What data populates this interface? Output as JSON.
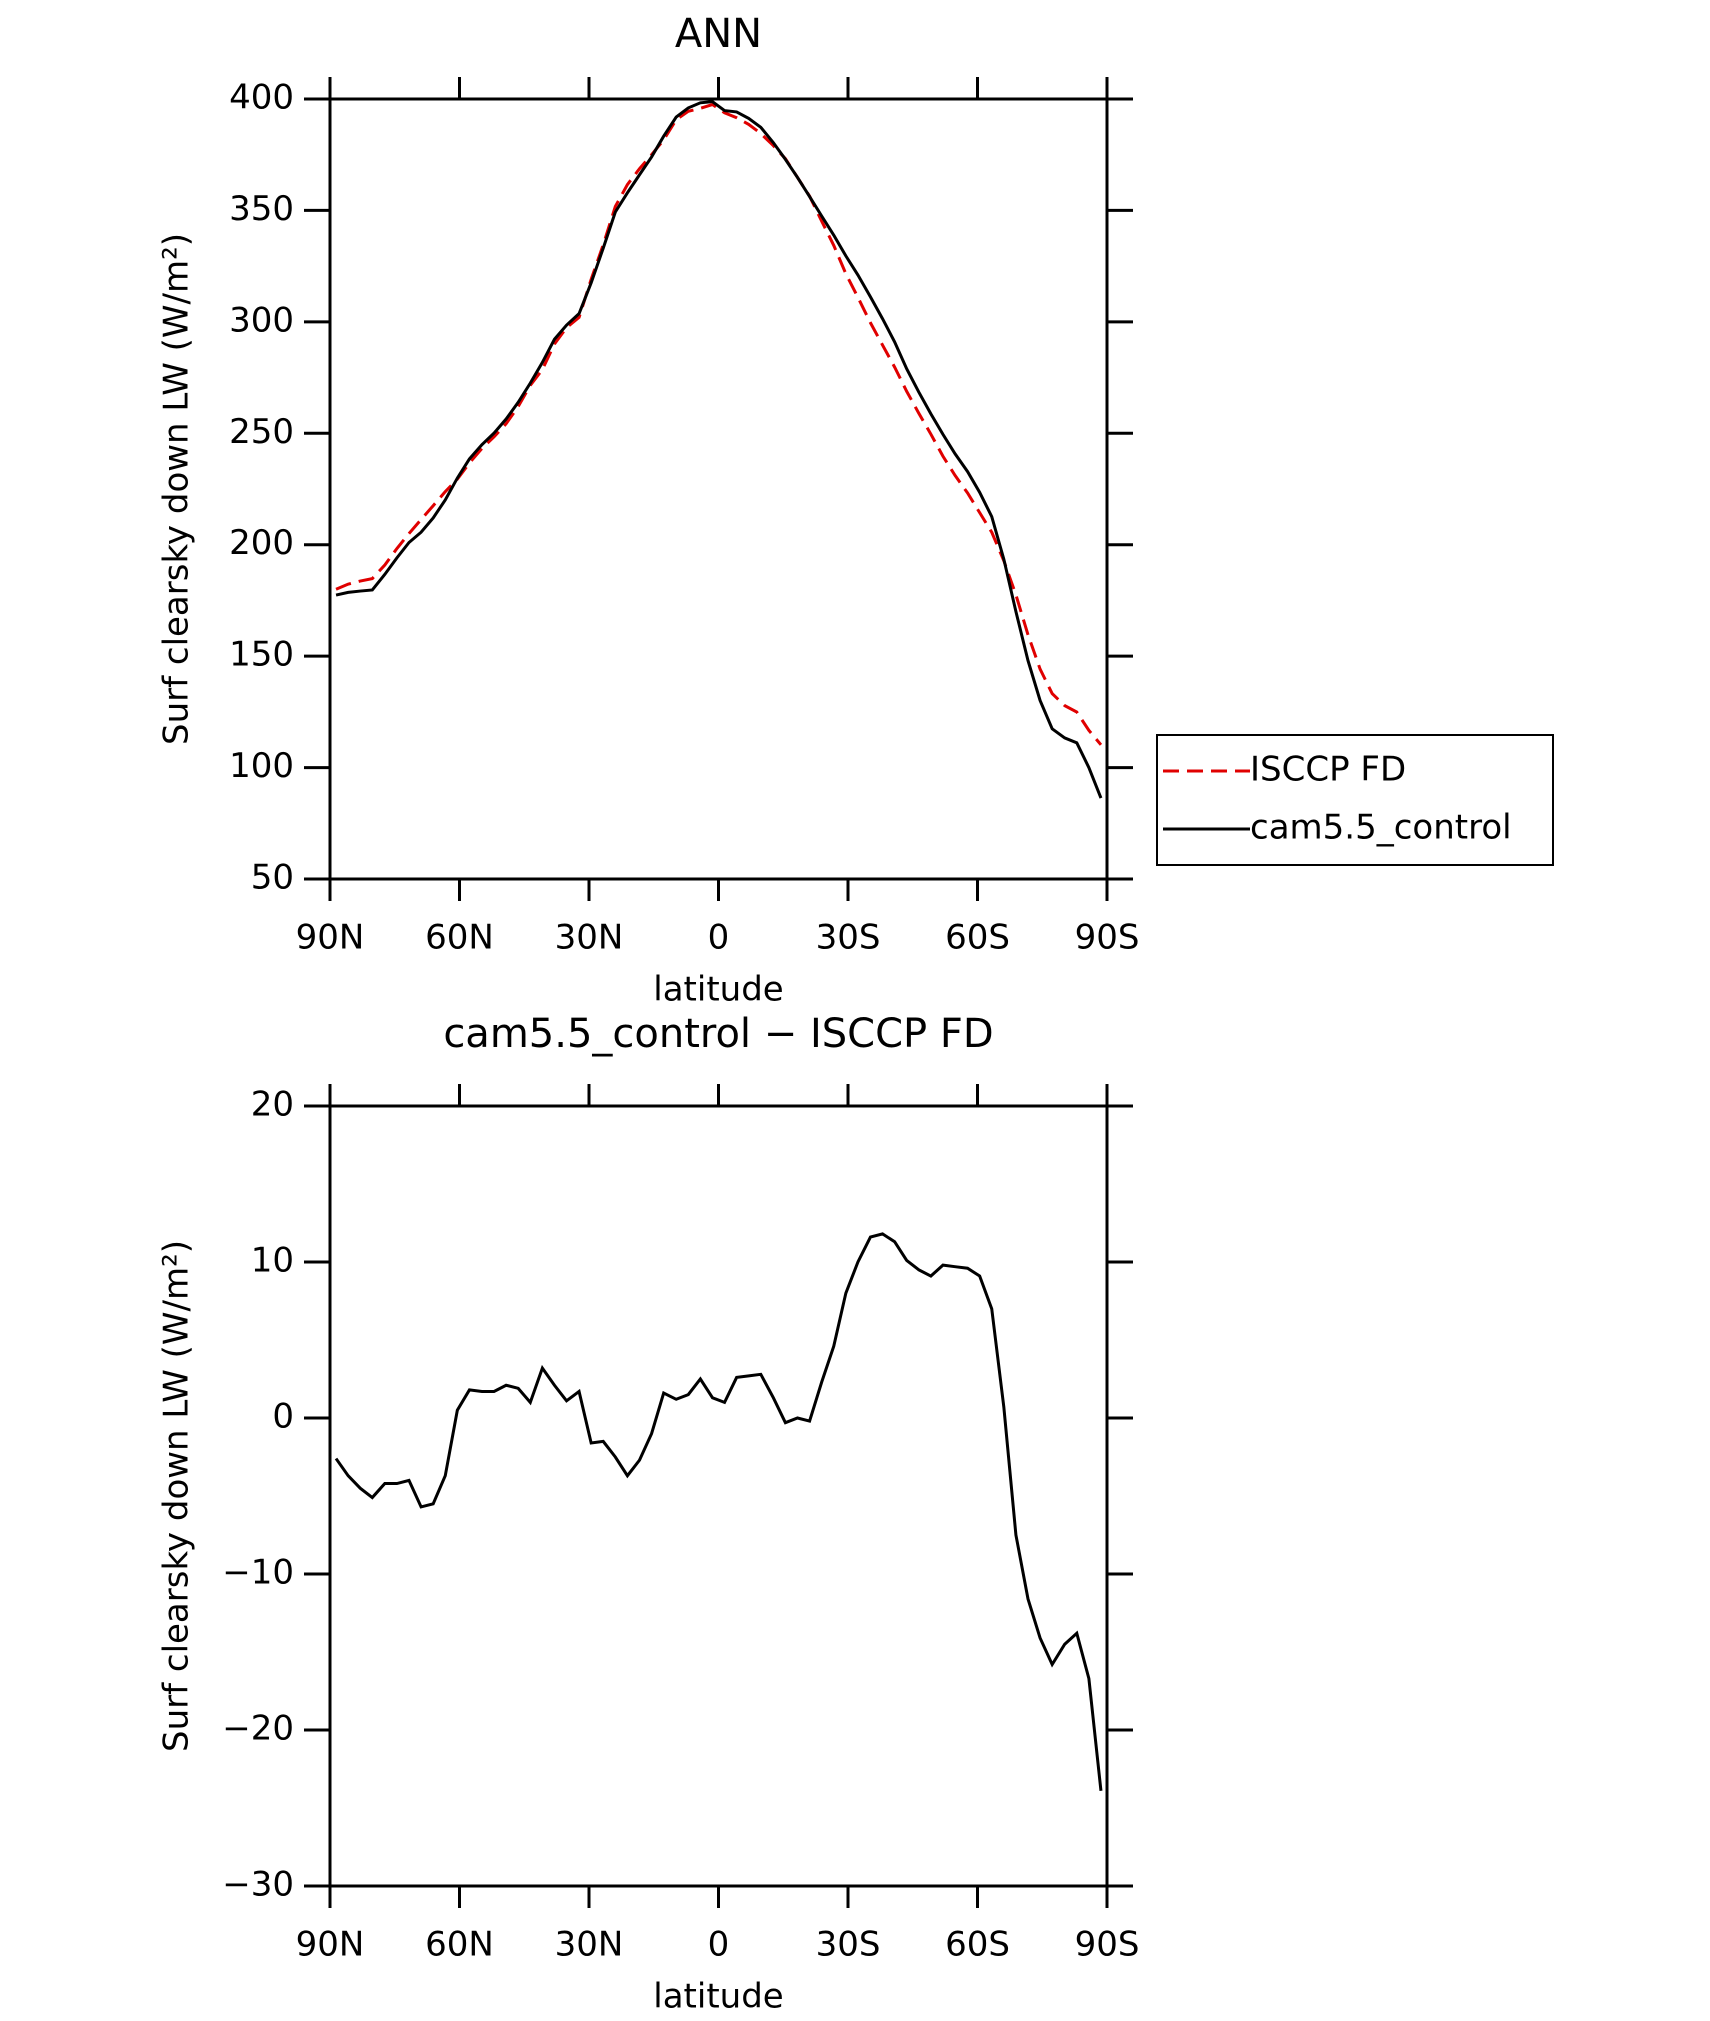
{
  "chart_data": [
    {
      "type": "line",
      "title": "ANN",
      "x_label": "latitude",
      "y_label": "Surf clearsky down LW (W/m²)",
      "x": [
        88.6,
        85.8,
        83.0,
        80.2,
        77.3,
        74.5,
        71.7,
        68.9,
        66.1,
        63.3,
        60.5,
        57.7,
        54.8,
        52.0,
        49.2,
        46.4,
        43.6,
        40.8,
        38.0,
        35.2,
        32.3,
        29.5,
        26.7,
        23.9,
        21.1,
        18.3,
        15.5,
        12.7,
        9.8,
        7.0,
        4.2,
        1.4,
        -1.4,
        -4.2,
        -7.0,
        -9.8,
        -12.7,
        -15.5,
        -18.3,
        -21.1,
        -23.9,
        -26.7,
        -29.5,
        -32.3,
        -35.2,
        -38.0,
        -40.8,
        -43.6,
        -46.4,
        -49.2,
        -52.0,
        -54.8,
        -57.7,
        -60.5,
        -63.3,
        -66.1,
        -68.9,
        -71.7,
        -74.5,
        -77.3,
        -80.2,
        -83.0,
        -85.8,
        -88.6
      ],
      "series": [
        {
          "name": "ISCCP FD",
          "color": "#e00000",
          "dash": true,
          "values": [
            180.0,
            182.3,
            183.7,
            184.8,
            190.9,
            198.3,
            205.0,
            211.3,
            217.5,
            223.8,
            229.4,
            236.7,
            243.2,
            248.4,
            254.3,
            262.0,
            271.5,
            278.6,
            290.1,
            297.4,
            302.0,
            319.1,
            334.6,
            351.8,
            361.6,
            368.7,
            375.0,
            381.7,
            390.7,
            394.5,
            395.8,
            397.5,
            393.8,
            391.6,
            388.6,
            384.5,
            379.1,
            373.2,
            364.8,
            356.4,
            345.2,
            334.3,
            321.6,
            311.0,
            299.6,
            289.6,
            279.7,
            268.8,
            259.0,
            249.6,
            239.7,
            231.1,
            223.2,
            214.4,
            205.6,
            192.8,
            177.5,
            159.6,
            144.2,
            133.2,
            127.8,
            124.9,
            116.7,
            110.2
          ]
        },
        {
          "name": "cam5.5_control",
          "color": "#000000",
          "dash": false,
          "values": [
            177.4,
            178.6,
            179.2,
            179.7,
            186.7,
            194.1,
            201.0,
            205.6,
            212.0,
            220.1,
            229.9,
            238.5,
            244.9,
            250.1,
            256.4,
            263.9,
            272.5,
            281.8,
            292.2,
            298.5,
            303.7,
            317.5,
            333.1,
            349.3,
            357.9,
            366.0,
            374.0,
            383.3,
            391.9,
            396.0,
            398.3,
            398.8,
            394.8,
            394.2,
            391.3,
            387.3,
            380.4,
            372.9,
            364.8,
            356.2,
            347.5,
            338.9,
            329.6,
            321.0,
            311.2,
            301.4,
            291.0,
            278.9,
            268.5,
            258.7,
            249.5,
            240.8,
            232.8,
            223.5,
            212.6,
            193.5,
            170.0,
            148.0,
            130.1,
            117.4,
            113.3,
            111.1,
            100.0,
            86.3
          ]
        }
      ],
      "xlim": [
        90,
        -90
      ],
      "xticks": [
        {
          "value": 90,
          "label": "90N"
        },
        {
          "value": 60,
          "label": "60N"
        },
        {
          "value": 30,
          "label": "30N"
        },
        0,
        {
          "value": -30,
          "label": "30S"
        },
        {
          "value": -60,
          "label": "60S"
        },
        {
          "value": -90,
          "label": "90S"
        }
      ],
      "ylim": [
        50,
        400
      ],
      "yticks": [
        50,
        100,
        150,
        200,
        250,
        300,
        350,
        400
      ],
      "legend": "right"
    },
    {
      "type": "line",
      "title": "cam5.5_control − ISCCP FD",
      "x_label": "latitude",
      "y_label": "Surf clearsky down LW (W/m²)",
      "x": [
        88.6,
        85.8,
        83.0,
        80.2,
        77.3,
        74.5,
        71.7,
        68.9,
        66.1,
        63.3,
        60.5,
        57.7,
        54.8,
        52.0,
        49.2,
        46.4,
        43.6,
        40.8,
        38.0,
        35.2,
        32.3,
        29.5,
        26.7,
        23.9,
        21.1,
        18.3,
        15.5,
        12.7,
        9.8,
        7.0,
        4.2,
        1.4,
        -1.4,
        -4.2,
        -7.0,
        -9.8,
        -12.7,
        -15.5,
        -18.3,
        -21.1,
        -23.9,
        -26.7,
        -29.5,
        -32.3,
        -35.2,
        -38.0,
        -40.8,
        -43.6,
        -46.4,
        -49.2,
        -52.0,
        -54.8,
        -57.7,
        -60.5,
        -63.3,
        -66.1,
        -68.9,
        -71.7,
        -74.5,
        -77.3,
        -80.2,
        -83.0,
        -85.8,
        -88.6
      ],
      "series": [
        {
          "color": "#000000",
          "dash": false,
          "values": [
            -2.6,
            -3.7,
            -4.5,
            -5.1,
            -4.2,
            -4.2,
            -4.0,
            -5.7,
            -5.5,
            -3.7,
            0.5,
            1.8,
            1.7,
            1.7,
            2.1,
            1.9,
            1.0,
            3.2,
            2.1,
            1.1,
            1.7,
            -1.6,
            -1.5,
            -2.5,
            -3.7,
            -2.7,
            -1.0,
            1.6,
            1.2,
            1.5,
            2.5,
            1.3,
            1.0,
            2.6,
            2.7,
            2.8,
            1.3,
            -0.3,
            0.0,
            -0.2,
            2.3,
            4.6,
            8.0,
            10.0,
            11.6,
            11.8,
            11.3,
            10.1,
            9.5,
            9.1,
            9.8,
            9.7,
            9.6,
            9.1,
            7.0,
            0.7,
            -7.5,
            -11.6,
            -14.1,
            -15.8,
            -14.5,
            -13.8,
            -16.7,
            -23.9
          ]
        }
      ],
      "xlim": [
        90,
        -90
      ],
      "xticks": [
        {
          "value": 90,
          "label": "90N"
        },
        {
          "value": 60,
          "label": "60N"
        },
        {
          "value": 30,
          "label": "30N"
        },
        0,
        {
          "value": -30,
          "label": "30S"
        },
        {
          "value": -60,
          "label": "60S"
        },
        {
          "value": -90,
          "label": "90S"
        }
      ],
      "ylim": [
        -30,
        20
      ],
      "yticks": [
        {
          "value": -30,
          "label": "−30"
        },
        {
          "value": -20,
          "label": "−20"
        },
        {
          "value": -10,
          "label": "−10"
        },
        0,
        10,
        20
      ]
    }
  ]
}
